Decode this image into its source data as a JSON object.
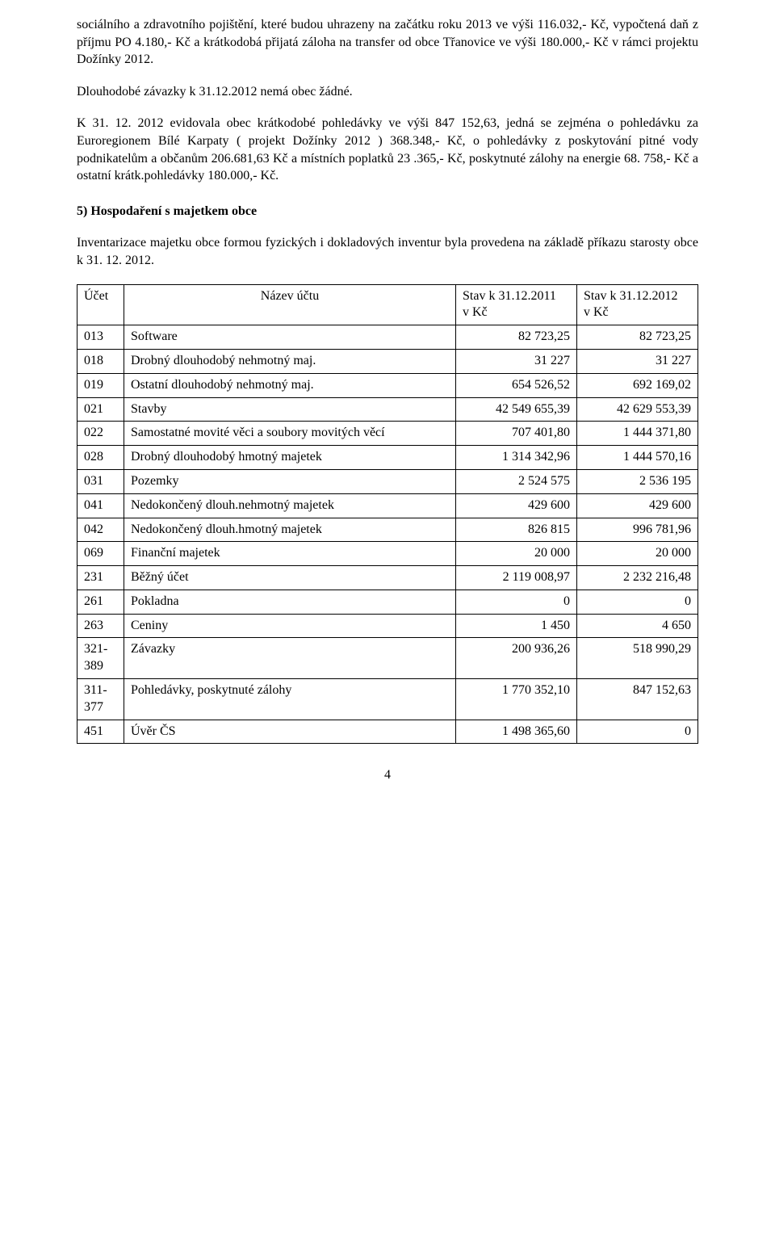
{
  "paragraphs": {
    "p1": "sociálního a zdravotního pojištění, které budou uhrazeny na začátku roku 2013 ve výši 116.032,- Kč, vypočtená daň z příjmu PO 4.180,- Kč a krátkodobá přijatá záloha na transfer od obce Třanovice ve výši 180.000,- Kč v rámci projektu Dožínky 2012.",
    "p2": "Dlouhodobé závazky k 31.12.2012 nemá obec žádné.",
    "p3": "K 31. 12. 2012 evidovala obec  krátkodobé pohledávky ve výši 847 152,63, jedná se zejména o pohledávku za Euroregionem Bílé Karpaty ( projekt Dožínky 2012 ) 368.348,- Kč, o pohledávky z poskytování pitné vody podnikatelům a občanům  206.681,63 Kč a místních poplatků 23 .365,- Kč, poskytnuté zálohy na energie 68. 758,- Kč a ostatní krátk.pohledávky 180.000,- Kč."
  },
  "section5": {
    "heading": "5)  Hospodaření s majetkem obce",
    "intro": "Inventarizace majetku obce formou fyzických i dokladových  inventur byla provedena na základě příkazu starosty obce k 31. 12. 2012."
  },
  "table": {
    "head": {
      "c1": "Účet",
      "c2": "Název účtu",
      "c3a": "Stav k 31.12.2011",
      "c3b": "v Kč",
      "c4a": "Stav k 31.12.2012",
      "c4b": "v Kč"
    },
    "rows": [
      {
        "code": "013",
        "name": "Software",
        "v1": "82 723,25",
        "v2": "82 723,25"
      },
      {
        "code": "018",
        "name": "Drobný dlouhodobý nehmotný maj.",
        "v1": "31 227",
        "v2": "31 227"
      },
      {
        "code": "019",
        "name": "Ostatní dlouhodobý nehmotný maj.",
        "v1": "654 526,52",
        "v2": "692 169,02"
      },
      {
        "code": "021",
        "name": "Stavby",
        "v1": "42 549 655,39",
        "v2": "42 629 553,39"
      },
      {
        "code": "022",
        "name": "Samostatné movité věci a soubory movitých věcí",
        "v1": "707 401,80",
        "v2": "1 444 371,80"
      },
      {
        "code": "028",
        "name": "Drobný dlouhodobý hmotný majetek",
        "v1": "1 314 342,96",
        "v2": "1 444 570,16"
      },
      {
        "code": "031",
        "name": "Pozemky",
        "v1": "2 524 575",
        "v2": "2 536 195"
      },
      {
        "code": "041",
        "name": "Nedokončený dlouh.nehmotný majetek",
        "v1": "429 600",
        "v2": "429 600"
      },
      {
        "code": "042",
        "name": "Nedokončený dlouh.hmotný majetek",
        "v1": "826 815",
        "v2": "996 781,96"
      },
      {
        "code": "069",
        "name": "Finanční majetek",
        "v1": "20 000",
        "v2": "20 000"
      },
      {
        "code": "231",
        "name": "Běžný účet",
        "v1": "2 119 008,97",
        "v2": "2 232 216,48"
      },
      {
        "code": "261",
        "name": "Pokladna",
        "v1": "0",
        "v2": "0"
      },
      {
        "code": "263",
        "name": "Ceniny",
        "v1": "1 450",
        "v2": "4 650"
      },
      {
        "code": "321-389",
        "name": "Závazky",
        "v1": "200 936,26",
        "v2": "518 990,29"
      },
      {
        "code": "311-377",
        "name": "Pohledávky, poskytnuté zálohy",
        "v1": "1 770 352,10",
        "v2": "847 152,63"
      },
      {
        "code": "451",
        "name": "Úvěr ČS",
        "v1": "1 498 365,60",
        "v2": "0"
      }
    ]
  },
  "pageNumber": "4"
}
